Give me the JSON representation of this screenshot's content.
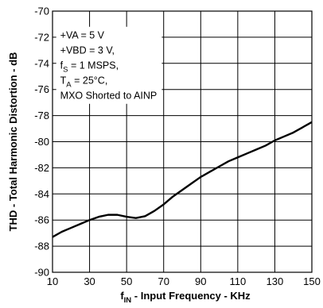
{
  "chart_data": {
    "type": "line",
    "xlabel": {
      "main": "f",
      "sub": "IN",
      "rest": " - Input Frequency - KHz"
    },
    "ylabel": "THD - Total Harmonic Distortion - dB",
    "xlim": [
      10,
      150
    ],
    "ylim": [
      -90,
      -70
    ],
    "xticks": [
      "10",
      "30",
      "50",
      "70",
      "90",
      "110",
      "130",
      "150"
    ],
    "yticks": [
      "-70",
      "-72",
      "-74",
      "-76",
      "-78",
      "-80",
      "-82",
      "-84",
      "-86",
      "-88",
      "-90"
    ],
    "grid": true,
    "annotations": [
      {
        "parts": [
          {
            "t": "+VA = 5 V"
          }
        ]
      },
      {
        "parts": [
          {
            "t": "+VBD = 3 V,"
          }
        ]
      },
      {
        "parts": [
          {
            "t": "f"
          },
          {
            "t": "S",
            "sub": true
          },
          {
            "t": " = 1 MSPS,"
          }
        ]
      },
      {
        "parts": [
          {
            "t": "T"
          },
          {
            "t": "A",
            "sub": true
          },
          {
            "t": " = 25°C,"
          }
        ]
      },
      {
        "parts": [
          {
            "t": "MXO Shorted to AINP"
          }
        ]
      }
    ],
    "series": [
      {
        "color": "#000000",
        "points": [
          [
            10,
            -87.3
          ],
          [
            15,
            -86.9
          ],
          [
            20,
            -86.6
          ],
          [
            25,
            -86.3
          ],
          [
            30,
            -86.0
          ],
          [
            35,
            -85.75
          ],
          [
            40,
            -85.6
          ],
          [
            45,
            -85.6
          ],
          [
            50,
            -85.75
          ],
          [
            55,
            -85.85
          ],
          [
            60,
            -85.7
          ],
          [
            65,
            -85.3
          ],
          [
            70,
            -84.8
          ],
          [
            75,
            -84.2
          ],
          [
            80,
            -83.7
          ],
          [
            85,
            -83.2
          ],
          [
            90,
            -82.7
          ],
          [
            95,
            -82.3
          ],
          [
            100,
            -81.9
          ],
          [
            105,
            -81.5
          ],
          [
            110,
            -81.2
          ],
          [
            115,
            -80.9
          ],
          [
            120,
            -80.6
          ],
          [
            125,
            -80.3
          ],
          [
            130,
            -79.9
          ],
          [
            135,
            -79.6
          ],
          [
            140,
            -79.3
          ],
          [
            145,
            -78.9
          ],
          [
            150,
            -78.5
          ]
        ]
      }
    ]
  }
}
